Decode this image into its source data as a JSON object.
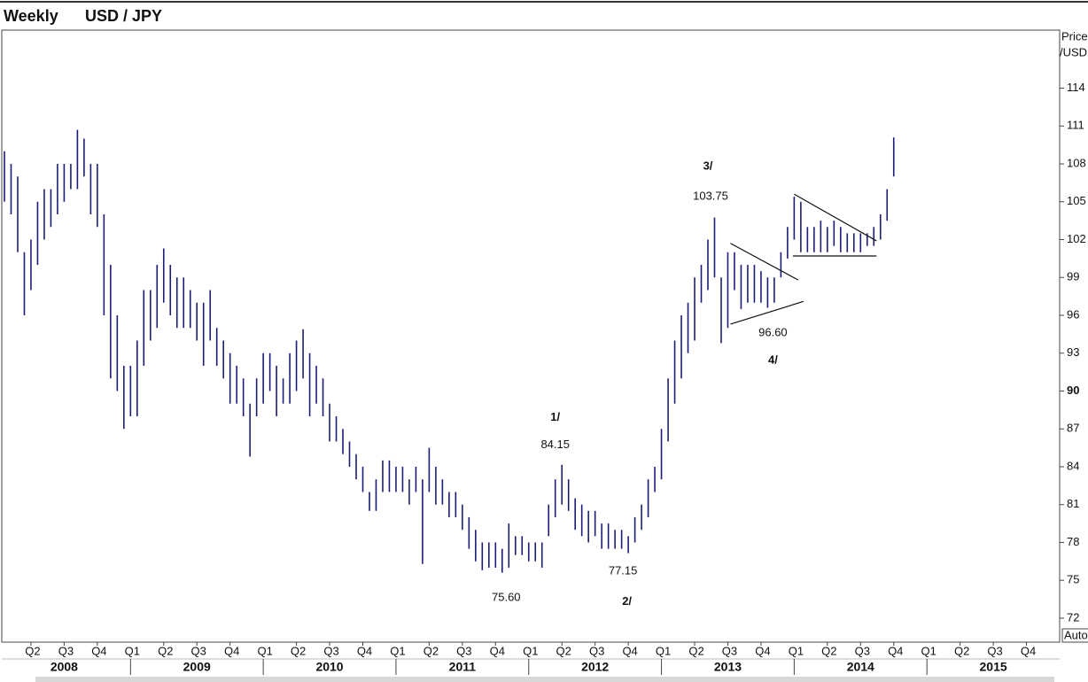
{
  "chart_data": {
    "type": "ohlc",
    "title": "Weekly",
    "subtitle": "USD / JPY",
    "ylabel": [
      "Price",
      "/USD"
    ],
    "scale_button": "Auto",
    "color": "#1c1c78",
    "grid": false,
    "xlim": [
      2008.03,
      2016.0
    ],
    "ylim": [
      70.1,
      118.6
    ],
    "yticks": [
      72,
      75,
      78,
      81,
      84,
      87,
      90,
      93,
      96,
      99,
      102,
      105,
      108,
      111,
      114
    ],
    "xticks": [
      {
        "value": 2008.25,
        "label": "Q2"
      },
      {
        "value": 2008.5,
        "label": "Q3"
      },
      {
        "value": 2008.75,
        "label": "Q4"
      },
      {
        "value": 2009.0,
        "label": "Q1"
      },
      {
        "value": 2009.25,
        "label": "Q2"
      },
      {
        "value": 2009.5,
        "label": "Q3"
      },
      {
        "value": 2009.75,
        "label": "Q4"
      },
      {
        "value": 2010.0,
        "label": "Q1"
      },
      {
        "value": 2010.25,
        "label": "Q2"
      },
      {
        "value": 2010.5,
        "label": "Q3"
      },
      {
        "value": 2010.75,
        "label": "Q4"
      },
      {
        "value": 2011.0,
        "label": "Q1"
      },
      {
        "value": 2011.25,
        "label": "Q2"
      },
      {
        "value": 2011.5,
        "label": "Q3"
      },
      {
        "value": 2011.75,
        "label": "Q4"
      },
      {
        "value": 2012.0,
        "label": "Q1"
      },
      {
        "value": 2012.25,
        "label": "Q2"
      },
      {
        "value": 2012.5,
        "label": "Q3"
      },
      {
        "value": 2012.75,
        "label": "Q4"
      },
      {
        "value": 2013.0,
        "label": "Q1"
      },
      {
        "value": 2013.25,
        "label": "Q2"
      },
      {
        "value": 2013.5,
        "label": "Q3"
      },
      {
        "value": 2013.75,
        "label": "Q4"
      },
      {
        "value": 2014.0,
        "label": "Q1"
      },
      {
        "value": 2014.25,
        "label": "Q2"
      },
      {
        "value": 2014.5,
        "label": "Q3"
      },
      {
        "value": 2014.75,
        "label": "Q4"
      },
      {
        "value": 2015.0,
        "label": "Q1"
      },
      {
        "value": 2015.25,
        "label": "Q2"
      },
      {
        "value": 2015.5,
        "label": "Q3"
      },
      {
        "value": 2015.75,
        "label": "Q4"
      }
    ],
    "year_ticks": [
      {
        "value": 2008.5,
        "label": "2008"
      },
      {
        "value": 2009.5,
        "label": "2009"
      },
      {
        "value": 2010.5,
        "label": "2010"
      },
      {
        "value": 2011.5,
        "label": "2011"
      },
      {
        "value": 2012.5,
        "label": "2012"
      },
      {
        "value": 2013.5,
        "label": "2013"
      },
      {
        "value": 2014.5,
        "label": "2014"
      },
      {
        "value": 2015.5,
        "label": "2015"
      }
    ],
    "x": [
      2008.05,
      2008.1,
      2008.15,
      2008.2,
      2008.25,
      2008.3,
      2008.35,
      2008.4,
      2008.45,
      2008.5,
      2008.55,
      2008.6,
      2008.65,
      2008.7,
      2008.75,
      2008.8,
      2008.85,
      2008.9,
      2008.95,
      2009.0,
      2009.05,
      2009.1,
      2009.15,
      2009.2,
      2009.25,
      2009.3,
      2009.35,
      2009.4,
      2009.45,
      2009.5,
      2009.55,
      2009.6,
      2009.65,
      2009.7,
      2009.75,
      2009.8,
      2009.85,
      2009.9,
      2009.95,
      2010.0,
      2010.05,
      2010.1,
      2010.15,
      2010.2,
      2010.25,
      2010.3,
      2010.35,
      2010.4,
      2010.45,
      2010.5,
      2010.55,
      2010.6,
      2010.65,
      2010.7,
      2010.75,
      2010.8,
      2010.85,
      2010.9,
      2010.95,
      2011.0,
      2011.05,
      2011.1,
      2011.15,
      2011.2,
      2011.25,
      2011.3,
      2011.35,
      2011.4,
      2011.45,
      2011.5,
      2011.55,
      2011.6,
      2011.65,
      2011.7,
      2011.75,
      2011.8,
      2011.85,
      2011.9,
      2011.95,
      2012.0,
      2012.05,
      2012.1,
      2012.15,
      2012.2,
      2012.25,
      2012.3,
      2012.35,
      2012.4,
      2012.45,
      2012.5,
      2012.55,
      2012.6,
      2012.65,
      2012.7,
      2012.75,
      2012.8,
      2012.85,
      2012.9,
      2012.95,
      2013.0,
      2013.05,
      2013.1,
      2013.15,
      2013.2,
      2013.25,
      2013.3,
      2013.35,
      2013.4,
      2013.45,
      2013.5,
      2013.55,
      2013.6,
      2013.65,
      2013.7,
      2013.75,
      2013.8,
      2013.85,
      2013.9,
      2013.95,
      2014.0,
      2014.05,
      2014.1,
      2014.15,
      2014.2,
      2014.25,
      2014.3,
      2014.35,
      2014.4,
      2014.45,
      2014.5,
      2014.55,
      2014.6,
      2014.65,
      2014.7,
      2014.75
    ],
    "high": [
      109,
      108,
      107,
      101,
      102,
      105,
      106,
      106,
      108,
      108,
      108,
      110.7,
      110,
      108,
      108,
      104,
      100,
      96,
      92,
      92,
      94,
      98,
      98,
      100,
      101.3,
      100,
      99,
      99,
      98,
      97,
      97,
      98,
      95,
      94,
      93,
      92,
      91,
      89,
      91,
      93,
      93,
      92,
      91,
      93,
      94,
      94.9,
      93,
      92,
      91,
      89,
      88,
      87,
      86,
      85,
      84,
      82,
      83,
      84.5,
      84.5,
      84,
      84,
      83,
      84,
      83,
      85.5,
      84,
      83,
      82,
      82,
      81,
      80,
      79,
      78,
      78,
      78,
      77.5,
      79.5,
      78.5,
      78.5,
      78,
      78,
      78,
      81,
      83,
      84.15,
      83,
      81.5,
      81,
      80.5,
      80.5,
      79.5,
      79.5,
      79,
      79,
      78.5,
      80,
      81,
      83,
      84,
      87,
      91,
      94,
      96,
      97,
      99,
      100,
      102,
      103.75,
      99,
      101,
      101,
      100,
      100,
      100,
      99.5,
      99,
      99,
      101,
      103,
      105.4,
      105,
      103,
      103,
      103.5,
      103,
      103.5,
      103,
      102.5,
      102.5,
      102.5,
      102.5,
      103,
      104,
      106,
      110.1
    ],
    "low": [
      105,
      104,
      101,
      96,
      98,
      100,
      102,
      103,
      104,
      105,
      106,
      106,
      107,
      104,
      103,
      96,
      91,
      90,
      87,
      88,
      88,
      92,
      94,
      95,
      97,
      96,
      95,
      95,
      95,
      94,
      92,
      94,
      92,
      91,
      89,
      89,
      88,
      84.8,
      88,
      89,
      90,
      88,
      89,
      89,
      90,
      91,
      88,
      89,
      88,
      86,
      86,
      85,
      84,
      83,
      82,
      80.5,
      80.5,
      82,
      82,
      82,
      82,
      81,
      82,
      76.3,
      82,
      81,
      81,
      80,
      80,
      79,
      77.5,
      76.5,
      75.8,
      76,
      76,
      75.6,
      76,
      77,
      77,
      76.5,
      76.5,
      76,
      78.5,
      80,
      81,
      80.5,
      79,
      78.5,
      78,
      78.5,
      77.5,
      77.5,
      77.5,
      77.5,
      77.15,
      78,
      79,
      80,
      82,
      83,
      86,
      89,
      91,
      93,
      94,
      97,
      98,
      99,
      93.8,
      95,
      98,
      96.5,
      97,
      97,
      97,
      96.6,
      97,
      99,
      100.5,
      102,
      101,
      101,
      101,
      101,
      101,
      101.5,
      101,
      101,
      101,
      101,
      101.5,
      101.5,
      102,
      103.5,
      107
    ],
    "annotations": [
      {
        "text": "1/",
        "x": 2012.2,
        "y": 87.9,
        "bold": true
      },
      {
        "text": "84.15",
        "x": 2012.2,
        "y": 85.7,
        "bold": false
      },
      {
        "text": "75.60",
        "x": 2011.83,
        "y": 73.6,
        "bold": false
      },
      {
        "text": "77.15",
        "x": 2012.71,
        "y": 75.7,
        "bold": false
      },
      {
        "text": "2/",
        "x": 2012.74,
        "y": 73.3,
        "bold": true
      },
      {
        "text": "3/",
        "x": 2013.35,
        "y": 107.8,
        "bold": true
      },
      {
        "text": "103.75",
        "x": 2013.37,
        "y": 105.4,
        "bold": false
      },
      {
        "text": "96.60",
        "x": 2013.84,
        "y": 94.6,
        "bold": false
      },
      {
        "text": "4/",
        "x": 2013.84,
        "y": 92.4,
        "bold": true
      }
    ],
    "trendlines": [
      {
        "x": [
          2013.52,
          2014.03
        ],
        "y": [
          101.7,
          98.8
        ]
      },
      {
        "x": [
          2013.52,
          2014.07
        ],
        "y": [
          95.3,
          97.1
        ]
      },
      {
        "x": [
          2014.0,
          2014.62
        ],
        "y": [
          105.6,
          101.9
        ]
      },
      {
        "x": [
          2013.99,
          2014.62
        ],
        "y": [
          100.7,
          100.7
        ]
      }
    ]
  }
}
